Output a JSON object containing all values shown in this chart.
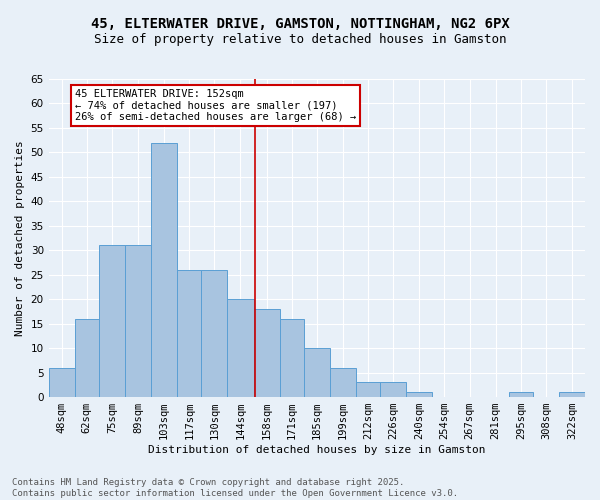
{
  "title": "45, ELTERWATER DRIVE, GAMSTON, NOTTINGHAM, NG2 6PX",
  "subtitle": "Size of property relative to detached houses in Gamston",
  "xlabel": "Distribution of detached houses by size in Gamston",
  "ylabel": "Number of detached properties",
  "background_color": "#e8f0f8",
  "bar_color": "#a8c4e0",
  "bar_edge_color": "#5a9fd4",
  "grid_color": "#ffffff",
  "vline_color": "#cc0000",
  "vline_x": 152,
  "categories": [
    "48sqm",
    "62sqm",
    "75sqm",
    "89sqm",
    "103sqm",
    "117sqm",
    "130sqm",
    "144sqm",
    "158sqm",
    "171sqm",
    "185sqm",
    "199sqm",
    "212sqm",
    "226sqm",
    "240sqm",
    "254sqm",
    "267sqm",
    "281sqm",
    "295sqm",
    "308sqm",
    "322sqm"
  ],
  "bin_edges": [
    41,
    55,
    68,
    82,
    96,
    110,
    123,
    137,
    151,
    165,
    178,
    192,
    206,
    219,
    233,
    247,
    260,
    274,
    288,
    301,
    315,
    329
  ],
  "values": [
    6,
    16,
    31,
    31,
    52,
    26,
    26,
    20,
    18,
    16,
    10,
    6,
    3,
    3,
    1,
    0,
    0,
    0,
    1,
    0,
    1
  ],
  "ylim": [
    0,
    65
  ],
  "yticks": [
    0,
    5,
    10,
    15,
    20,
    25,
    30,
    35,
    40,
    45,
    50,
    55,
    60,
    65
  ],
  "annotation_text": "45 ELTERWATER DRIVE: 152sqm\n← 74% of detached houses are smaller (197)\n26% of semi-detached houses are larger (68) →",
  "annotation_box_color": "#ffffff",
  "annotation_border_color": "#cc0000",
  "footer_text": "Contains HM Land Registry data © Crown copyright and database right 2025.\nContains public sector information licensed under the Open Government Licence v3.0.",
  "title_fontsize": 10,
  "subtitle_fontsize": 9,
  "label_fontsize": 8,
  "tick_fontsize": 7.5,
  "annotation_fontsize": 7.5,
  "footer_fontsize": 6.5
}
